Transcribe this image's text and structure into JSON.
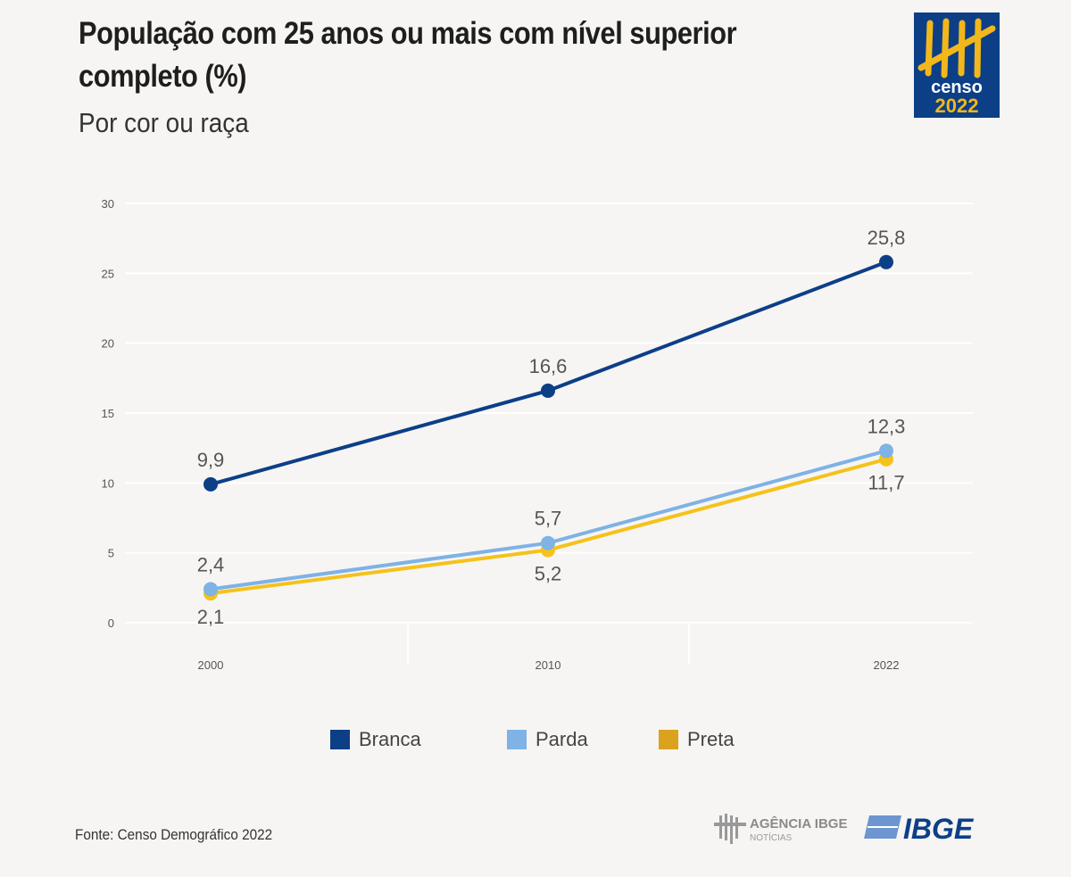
{
  "header": {
    "title": "População com 25 anos ou mais com nível superior completo (%)",
    "subtitle": "Por cor ou raça"
  },
  "logos": {
    "censo": "censo 2022",
    "agencia": "AGÊNCIA IBGE NOTÍCIAS",
    "ibge": "IBGE"
  },
  "footer": {
    "source": "Fonte: Censo Demográfico 2022"
  },
  "chart_data": {
    "type": "line",
    "title": "População com 25 anos ou mais com nível superior completo (%)",
    "subtitle": "Por cor ou raça",
    "x": [
      "2000",
      "2010",
      "2022"
    ],
    "xvalues": [
      2000,
      2010,
      2022
    ],
    "ylim": [
      0,
      30
    ],
    "yticks": [
      0,
      5,
      10,
      15,
      20,
      25,
      30
    ],
    "grid": true,
    "legend_position": "bottom",
    "series": [
      {
        "name": "Branca",
        "color": "#0d3f87",
        "values": [
          9.9,
          16.6,
          25.8
        ],
        "labels": [
          "9,9",
          "16,6",
          "25,8"
        ],
        "label_pos": "above"
      },
      {
        "name": "Parda",
        "color": "#7fb2e5",
        "values": [
          2.4,
          5.7,
          12.3
        ],
        "labels": [
          "2,4",
          "5,7",
          "12,3"
        ],
        "label_pos": "above"
      },
      {
        "name": "Preta",
        "color": "#f5c21b",
        "legend_color": "#dba21e",
        "values": [
          2.1,
          5.2,
          11.7
        ],
        "labels": [
          "2,1",
          "5,2",
          "11,7"
        ],
        "label_pos": "below"
      }
    ]
  }
}
